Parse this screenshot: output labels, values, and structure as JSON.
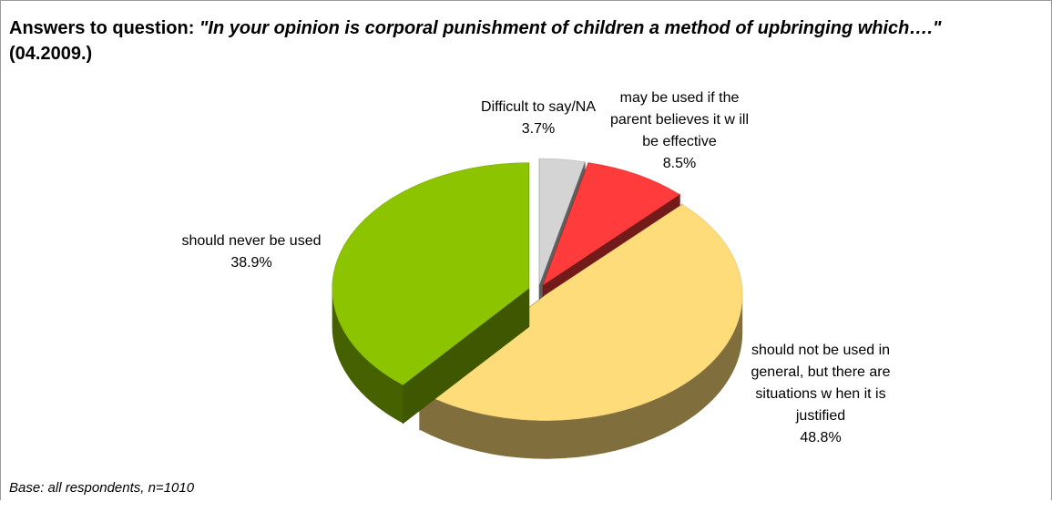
{
  "chart_data": {
    "type": "pie",
    "title": {
      "lead": "Answers to question:",
      "question": "\"In your opinion is corporal punishment of children a method of upbringing which….\"",
      "date": "(04.2009.)"
    },
    "categories": [
      "Difficult to say/NA",
      "may be used if the parent believes it w ill be effective",
      "should not be used in general, but there are situations w hen it is justified",
      "should never be used"
    ],
    "values": [
      3.7,
      8.5,
      48.8,
      38.9
    ],
    "value_labels": [
      "3.7%",
      "8.5%",
      "48.8%",
      "38.9%"
    ],
    "colors": [
      "#d4d4d4",
      "#ff3b3b",
      "#ffdc7a",
      "#8cc400"
    ],
    "note": "Base: all respondents, n=1010"
  }
}
